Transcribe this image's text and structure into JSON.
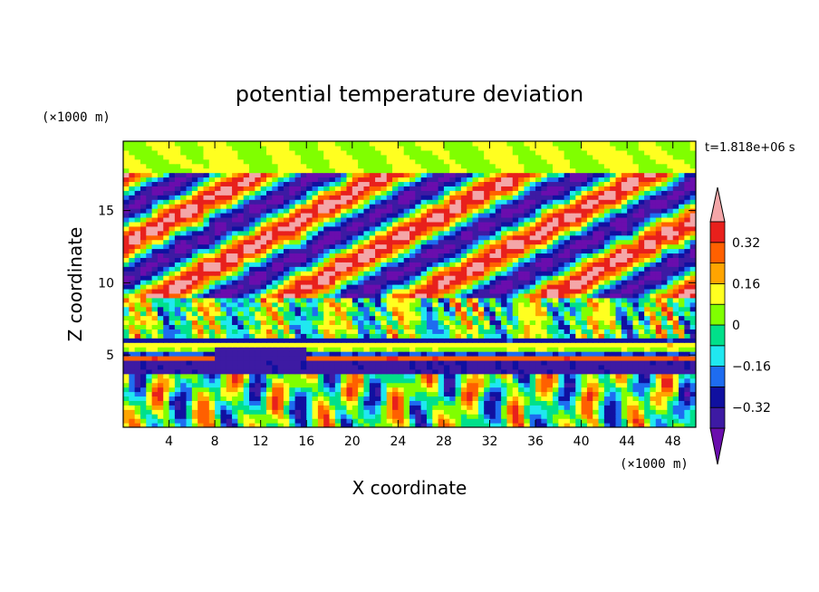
{
  "chart_data": {
    "type": "heatmap",
    "title": "potential temperature deviation",
    "xlabel": "X coordinate",
    "ylabel": "Z coordinate",
    "x_unit": "(×1000 m)",
    "y_unit": "(×1000 m)",
    "time_label": "t=1.818e+06 s",
    "xlim": [
      0,
      50
    ],
    "ylim": [
      0,
      19.8
    ],
    "x_ticks": [
      4,
      8,
      12,
      16,
      20,
      24,
      28,
      32,
      36,
      40,
      44,
      48
    ],
    "y_ticks": [
      5,
      10,
      15
    ],
    "colorbar": {
      "levels": [
        -0.4,
        -0.32,
        -0.24,
        -0.16,
        -0.08,
        0,
        0.08,
        0.16,
        0.24,
        0.32,
        0.4
      ],
      "labeled": [
        0.32,
        0.16,
        0,
        -0.16,
        -0.32
      ],
      "label_text": [
        "0.32",
        "0.16",
        "0",
        "−0.16",
        "−0.32"
      ],
      "colors": [
        "#6a0dad",
        "#3d1aa3",
        "#1010a0",
        "#1e6cf0",
        "#20e8f0",
        "#00e08a",
        "#80ff00",
        "#ffff20",
        "#ffa400",
        "#ff6000",
        "#e8201c",
        "#f4a6a8"
      ]
    },
    "bands": [
      {
        "z": [
          0,
          3.6
        ],
        "pattern": "convective plumes",
        "range": [
          -0.4,
          0.4
        ]
      },
      {
        "z": [
          3.6,
          4.6
        ],
        "pattern": "cold layer",
        "value": -0.34
      },
      {
        "z": [
          4.6,
          6.2
        ],
        "pattern": "warm stripes",
        "value": 0.3
      },
      {
        "z": [
          6.2,
          9.0
        ],
        "pattern": "cold/warm mixing",
        "range": [
          -0.4,
          0.4
        ]
      },
      {
        "z": [
          9.0,
          17.5
        ],
        "pattern": "tilted waves",
        "range": [
          -0.4,
          0.4
        ]
      },
      {
        "z": [
          17.5,
          19.8
        ],
        "pattern": "weak",
        "range": [
          -0.08,
          0.2
        ]
      }
    ]
  }
}
